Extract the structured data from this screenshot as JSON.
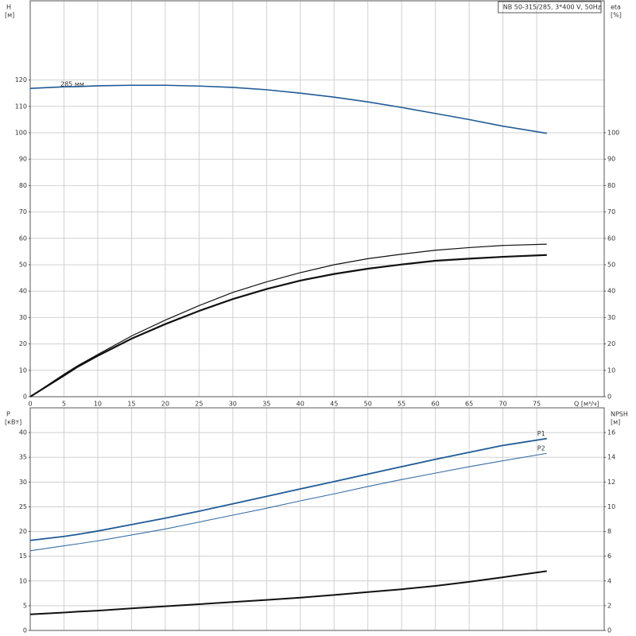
{
  "chart_data": [
    {
      "type": "line",
      "title": "NB 50-315/285, 3*400 V, 50Hz",
      "ylabel": "H",
      "ylabel_unit": "[м]",
      "y2label": "eta",
      "y2label_unit": "[%]",
      "xlabel": "Q [м³/ч]",
      "x": [
        0,
        5,
        7,
        10,
        15,
        20,
        25,
        30,
        35,
        40,
        45,
        50,
        55,
        60,
        65,
        70,
        76.5
      ],
      "xlim": [
        0,
        85
      ],
      "xticks": [
        0,
        5,
        10,
        15,
        20,
        25,
        30,
        35,
        40,
        45,
        50,
        55,
        60,
        65,
        70,
        75
      ],
      "ylim": [
        0,
        150
      ],
      "yticks": [
        0,
        10,
        20,
        30,
        40,
        50,
        60,
        70,
        80,
        90,
        100,
        110,
        120
      ],
      "y2lim": [
        0,
        150
      ],
      "y2ticks": [
        0,
        10,
        20,
        30,
        40,
        50,
        60,
        70,
        80,
        90,
        100
      ],
      "grid": true,
      "series": [
        {
          "name": "285 мм",
          "label_position": "start",
          "color": "#1f5a96",
          "width": 1.6,
          "values": [
            116.8,
            117.4,
            117.5,
            117.8,
            118,
            118,
            117.7,
            117.2,
            116.3,
            115,
            113.5,
            111.7,
            109.6,
            107.3,
            105,
            102.5,
            99.8
          ]
        },
        {
          "axis": "y2",
          "color": "#111111",
          "width": 1.2,
          "values": [
            0,
            8.5,
            11.7,
            16,
            23,
            29,
            34.5,
            39.5,
            43.5,
            47,
            50,
            52.3,
            54,
            55.5,
            56.5,
            57.3,
            57.8
          ]
        },
        {
          "axis": "y2",
          "color": "#111111",
          "width": 2.2,
          "values": [
            0,
            8,
            11.3,
            15.5,
            22,
            27.5,
            32.5,
            37,
            40.8,
            44,
            46.5,
            48.5,
            50.1,
            51.5,
            52.3,
            53,
            53.7
          ]
        }
      ]
    },
    {
      "type": "line",
      "ylabel": "P",
      "ylabel_unit": "[кВт]",
      "y2label": "NPSH",
      "y2label_unit": "[м]",
      "x": [
        0,
        5,
        7,
        10,
        15,
        20,
        25,
        30,
        35,
        40,
        45,
        50,
        55,
        60,
        65,
        70,
        76.5
      ],
      "xlim": [
        0,
        85
      ],
      "xticks": [
        0,
        5,
        10,
        15,
        20,
        25,
        30,
        35,
        40,
        45,
        50,
        55,
        60,
        65,
        70,
        75
      ],
      "ylim": [
        0,
        45
      ],
      "yticks": [
        0,
        5,
        10,
        15,
        20,
        25,
        30,
        35,
        40
      ],
      "y2lim": [
        0,
        18
      ],
      "y2ticks": [
        0,
        2,
        4,
        6,
        8,
        10,
        12,
        14,
        16
      ],
      "grid": true,
      "series": [
        {
          "name": "P1",
          "label_position": "end",
          "color": "#1f5a96",
          "width": 1.8,
          "values": [
            18.2,
            19,
            19.4,
            20.1,
            21.4,
            22.7,
            24.1,
            25.6,
            27.1,
            28.6,
            30.1,
            31.6,
            33.1,
            34.6,
            36,
            37.4,
            38.8
          ]
        },
        {
          "name": "P2",
          "label_position": "end",
          "color": "#3a6ea5",
          "width": 1.1,
          "values": [
            16.1,
            17.1,
            17.5,
            18.1,
            19.3,
            20.5,
            21.9,
            23.3,
            24.7,
            26.2,
            27.6,
            29.1,
            30.5,
            31.8,
            33.1,
            34.3,
            35.8
          ]
        },
        {
          "axis": "y2",
          "color": "#111111",
          "width": 2,
          "values": [
            1.3,
            1.45,
            1.52,
            1.6,
            1.78,
            1.95,
            2.12,
            2.3,
            2.47,
            2.65,
            2.87,
            3.1,
            3.33,
            3.6,
            3.93,
            4.3,
            4.8
          ]
        }
      ]
    }
  ]
}
